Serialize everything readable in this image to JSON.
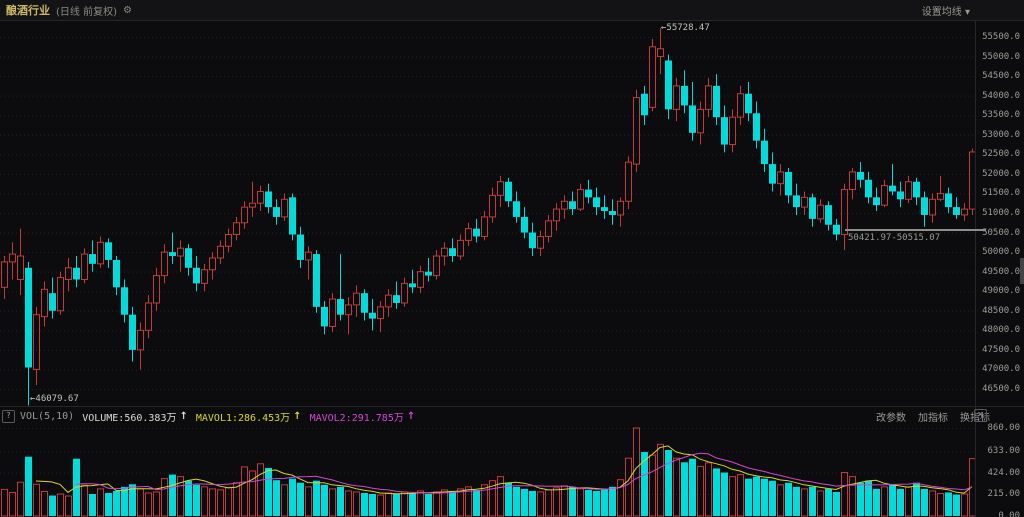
{
  "header": {
    "title": "酿酒行业",
    "subtitle": "(日线 前复权)",
    "gear_icon": "⚙",
    "settings_label": "设置均线 ▾"
  },
  "annotations": {
    "high_label": "←55728.47",
    "low_label": "←46079.67",
    "range_label": "50421.97-50515.07"
  },
  "vol_header": {
    "help_glyph": "?",
    "indicator": "VOL(5,10)",
    "volume_label": "VOLUME:560.383万",
    "volume_arrow": "↑",
    "mavol1_label": "MAVOL1:286.453万",
    "mavol1_arrow": "↑",
    "mavol2_label": "MAVOL2:291.785万",
    "mavol2_arrow": "↑",
    "buttons": [
      "改参数",
      "加指标",
      "换指标"
    ],
    "close_glyph": "✕"
  },
  "colors": {
    "background": "#0c0c0e",
    "up": "#c23b3b",
    "down": "#00dcdc",
    "mavol1": "#d6d62a",
    "mavol2": "#cf49cf",
    "grid": "#242428",
    "axis_text": "#9c9c96",
    "title_yellow": "#cdb964",
    "range_line": "#8f8f8a"
  },
  "chart_data": {
    "type": "candlestick",
    "title": "酿酒行业 日线 前复权",
    "legend": [
      "VOLUME",
      "MAVOL1",
      "MAVOL2"
    ],
    "price_axis": {
      "ticks": [
        55500,
        55000,
        54500,
        54000,
        53500,
        53000,
        52500,
        52000,
        51500,
        51000,
        50500,
        50000,
        49500,
        49000,
        48500,
        48000,
        47500,
        47000,
        46500
      ],
      "ylim": [
        46500,
        55500
      ],
      "grid": "dotted"
    },
    "volume_axis": {
      "ticks": [
        860,
        633,
        424,
        215,
        0
      ],
      "ylim": [
        0,
        860
      ],
      "unit": "万"
    },
    "high_point": {
      "value": 55728.47,
      "index": 82
    },
    "low_point": {
      "value": 46079.67,
      "index": 3
    },
    "range_marker": {
      "from": 50421.97,
      "to": 50515.07,
      "level": 50560
    },
    "last_volume": 560.383,
    "mavol1_last": 286.453,
    "mavol2_last": 291.785,
    "mavol_periods": [
      5,
      10
    ],
    "candles": [
      [
        49100,
        49900,
        48800,
        49750
      ],
      [
        49750,
        50250,
        49300,
        49950
      ],
      [
        49300,
        50600,
        48900,
        49900
      ],
      [
        49600,
        49750,
        46079.67,
        47050
      ],
      [
        47000,
        48600,
        46600,
        48400
      ],
      [
        48350,
        49250,
        48100,
        49050
      ],
      [
        48950,
        49350,
        48300,
        48500
      ],
      [
        48500,
        49500,
        48400,
        49350
      ],
      [
        49300,
        49850,
        49000,
        49600
      ],
      [
        49600,
        49900,
        49100,
        49300
      ],
      [
        49300,
        50100,
        49200,
        49950
      ],
      [
        49950,
        50300,
        49500,
        49700
      ],
      [
        49700,
        50400,
        49600,
        50250
      ],
      [
        50250,
        50350,
        49600,
        49800
      ],
      [
        49800,
        49900,
        48900,
        49100
      ],
      [
        49100,
        49300,
        48200,
        48400
      ],
      [
        48400,
        48600,
        47200,
        47500
      ],
      [
        47500,
        48200,
        47000,
        48000
      ],
      [
        48000,
        48900,
        47800,
        48700
      ],
      [
        48700,
        49600,
        48500,
        49400
      ],
      [
        49400,
        50200,
        49200,
        50000
      ],
      [
        50000,
        50500,
        49700,
        49900
      ],
      [
        49900,
        50300,
        49500,
        50100
      ],
      [
        50100,
        50200,
        49400,
        49600
      ],
      [
        49600,
        49900,
        49000,
        49200
      ],
      [
        49200,
        49700,
        49000,
        49550
      ],
      [
        49550,
        50000,
        49300,
        49850
      ],
      [
        49850,
        50300,
        49700,
        50150
      ],
      [
        50150,
        50600,
        50000,
        50450
      ],
      [
        50450,
        50900,
        50300,
        50750
      ],
      [
        50750,
        51300,
        50600,
        51150
      ],
      [
        51150,
        51800,
        50900,
        51250
      ],
      [
        51250,
        51700,
        51050,
        51550
      ],
      [
        51550,
        51750,
        51000,
        51150
      ],
      [
        51150,
        51350,
        50700,
        50900
      ],
      [
        50900,
        51500,
        50800,
        51350
      ],
      [
        51400,
        51500,
        50300,
        50450
      ],
      [
        50450,
        50650,
        49600,
        49800
      ],
      [
        49800,
        50150,
        49300,
        50000
      ],
      [
        49950,
        50050,
        48450,
        48600
      ],
      [
        48600,
        48750,
        47900,
        48100
      ],
      [
        48100,
        48950,
        47950,
        48800
      ],
      [
        48800,
        49950,
        48250,
        48400
      ],
      [
        48400,
        48850,
        47900,
        48650
      ],
      [
        48650,
        49150,
        48350,
        48950
      ],
      [
        48950,
        49050,
        48250,
        48450
      ],
      [
        48450,
        48800,
        48000,
        48300
      ],
      [
        48300,
        48750,
        47950,
        48600
      ],
      [
        48600,
        49050,
        48350,
        48900
      ],
      [
        48900,
        49250,
        48550,
        48700
      ],
      [
        48700,
        49350,
        48600,
        49200
      ],
      [
        49200,
        49550,
        48950,
        49100
      ],
      [
        49100,
        49650,
        48950,
        49500
      ],
      [
        49500,
        49850,
        49250,
        49400
      ],
      [
        49400,
        50050,
        49300,
        49900
      ],
      [
        49900,
        50250,
        49650,
        50100
      ],
      [
        50100,
        50350,
        49750,
        49900
      ],
      [
        49900,
        50450,
        49800,
        50300
      ],
      [
        50300,
        50750,
        50150,
        50600
      ],
      [
        50600,
        50850,
        50250,
        50400
      ],
      [
        50400,
        51050,
        50300,
        50900
      ],
      [
        50900,
        51650,
        50750,
        51450
      ],
      [
        51450,
        51950,
        51150,
        51800
      ],
      [
        51800,
        51900,
        51150,
        51300
      ],
      [
        51300,
        51550,
        50750,
        50900
      ],
      [
        50900,
        51150,
        50350,
        50500
      ],
      [
        50500,
        50750,
        49900,
        50100
      ],
      [
        50100,
        50550,
        49900,
        50400
      ],
      [
        50400,
        50950,
        50250,
        50800
      ],
      [
        50800,
        51250,
        50550,
        51100
      ],
      [
        51100,
        51450,
        50850,
        51300
      ],
      [
        51300,
        51550,
        50950,
        51100
      ],
      [
        51100,
        51750,
        51050,
        51600
      ],
      [
        51600,
        51850,
        51250,
        51400
      ],
      [
        51400,
        51650,
        50950,
        51150
      ],
      [
        51150,
        51450,
        50850,
        51050
      ],
      [
        51050,
        51350,
        50700,
        50950
      ],
      [
        50950,
        51400,
        50650,
        51300
      ],
      [
        51300,
        52450,
        51100,
        52300
      ],
      [
        52250,
        54150,
        52050,
        53950
      ],
      [
        54050,
        54250,
        53250,
        53500
      ],
      [
        53700,
        55450,
        53600,
        55250
      ],
      [
        55000,
        55728.47,
        54550,
        55200
      ],
      [
        54900,
        55050,
        53400,
        53650
      ],
      [
        53650,
        54450,
        53350,
        54250
      ],
      [
        54250,
        54650,
        53550,
        53750
      ],
      [
        53750,
        54350,
        52850,
        53050
      ],
      [
        53050,
        53850,
        52750,
        53650
      ],
      [
        53650,
        54450,
        53450,
        54250
      ],
      [
        54250,
        54550,
        53250,
        53450
      ],
      [
        53450,
        53750,
        52550,
        52750
      ],
      [
        52750,
        53650,
        52550,
        53450
      ],
      [
        53450,
        54250,
        53250,
        54050
      ],
      [
        54050,
        54350,
        53350,
        53550
      ],
      [
        53550,
        53850,
        52650,
        52850
      ],
      [
        52850,
        53150,
        52050,
        52250
      ],
      [
        52250,
        52550,
        51550,
        51750
      ],
      [
        51750,
        52250,
        51450,
        52050
      ],
      [
        52050,
        52150,
        51250,
        51450
      ],
      [
        51450,
        51750,
        50950,
        51150
      ],
      [
        51150,
        51550,
        50950,
        51400
      ],
      [
        51400,
        51500,
        50650,
        50850
      ],
      [
        50850,
        51350,
        50750,
        51200
      ],
      [
        51200,
        51300,
        50550,
        50700
      ],
      [
        50700,
        50850,
        50300,
        50450
      ],
      [
        50450,
        51750,
        50050,
        51600
      ],
      [
        51600,
        52150,
        51350,
        52050
      ],
      [
        52050,
        52300,
        51650,
        51850
      ],
      [
        51850,
        52050,
        51250,
        51400
      ],
      [
        51400,
        51650,
        51050,
        51200
      ],
      [
        51200,
        51850,
        51150,
        51700
      ],
      [
        51700,
        52250,
        51450,
        51550
      ],
      [
        51550,
        51800,
        51150,
        51350
      ],
      [
        51350,
        51950,
        51250,
        51800
      ],
      [
        51800,
        51900,
        51200,
        51400
      ],
      [
        51400,
        51550,
        50650,
        50950
      ],
      [
        50950,
        51500,
        50750,
        51350
      ],
      [
        51350,
        51950,
        51300,
        51500
      ],
      [
        51500,
        51650,
        51000,
        51150
      ],
      [
        51150,
        51400,
        50850,
        50950
      ],
      [
        50950,
        51250,
        50800,
        51100
      ],
      [
        51100,
        52650,
        50950,
        52560
      ]
    ],
    "volumes": [
      260,
      230,
      330,
      580,
      310,
      240,
      200,
      215,
      195,
      560,
      300,
      215,
      265,
      225,
      245,
      285,
      310,
      265,
      225,
      235,
      365,
      405,
      385,
      345,
      305,
      285,
      265,
      255,
      275,
      325,
      480,
      440,
      510,
      470,
      350,
      305,
      365,
      325,
      285,
      345,
      305,
      265,
      285,
      245,
      235,
      225,
      215,
      205,
      225,
      215,
      235,
      225,
      245,
      215,
      235,
      255,
      245,
      265,
      285,
      255,
      305,
      345,
      385,
      325,
      285,
      265,
      245,
      235,
      255,
      275,
      295,
      285,
      265,
      255,
      245,
      265,
      285,
      355,
      565,
      860,
      625,
      595,
      700,
      645,
      565,
      525,
      560,
      485,
      520,
      465,
      425,
      385,
      405,
      365,
      385,
      365,
      345,
      305,
      325,
      285,
      265,
      285,
      245,
      265,
      235,
      425,
      385,
      325,
      345,
      265,
      285,
      305,
      265,
      285,
      325,
      265,
      245,
      220,
      230,
      210,
      215,
      560.383
    ]
  }
}
